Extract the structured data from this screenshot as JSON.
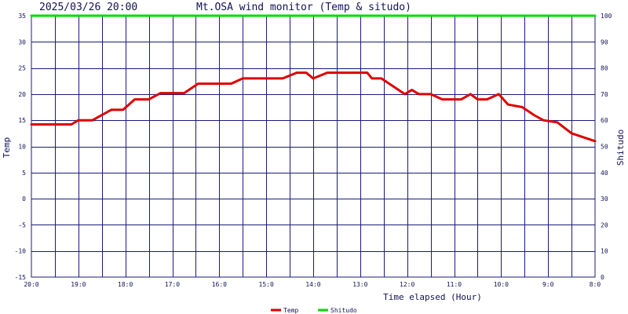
{
  "header": {
    "timestamp": "2025/03/26 20:00",
    "title": "Mt.OSA wind monitor (Temp & situdo)"
  },
  "chart_data": {
    "type": "line",
    "title": "Mt.OSA wind monitor (Temp & situdo)",
    "xlabel": "Time elapsed (Hour)",
    "ylabel": "Temp",
    "y2label": "Shitudo",
    "ylim": [
      -15,
      35
    ],
    "y2lim": [
      0,
      100
    ],
    "yticks": [
      "35",
      "30",
      "25",
      "20",
      "15",
      "10",
      "5",
      "0",
      "-5",
      "-10",
      "-15"
    ],
    "y2ticks": [
      "100",
      "90",
      "80",
      "70",
      "60",
      "50",
      "40",
      "30",
      "20",
      "10",
      "0"
    ],
    "xlim": [
      0,
      12
    ],
    "x_reversed_hours": true,
    "xticks": [
      "20:0",
      "19:0",
      "18:0",
      "17:0",
      "16:0",
      "15:0",
      "14:0",
      "13:0",
      "12:0",
      "11:0",
      "10:0",
      "9:0",
      "8:0"
    ],
    "grid": true,
    "legend_position": "bottom",
    "colors": {
      "grid": "#1a1a80",
      "temp": "#dd0000",
      "shitudo": "#00dd00",
      "text": "#111155"
    },
    "series": [
      {
        "name": "Temp",
        "color": "#dd0000",
        "axis": "left",
        "x": [
          0,
          0.5,
          0.85,
          1.0,
          1.3,
          1.7,
          1.95,
          2.2,
          2.5,
          2.75,
          3.0,
          3.25,
          3.55,
          3.75,
          4.0,
          4.25,
          4.5,
          4.75,
          5.0,
          5.15,
          5.35,
          5.65,
          5.85,
          6.0,
          6.3,
          6.5,
          6.8,
          7.15,
          7.25,
          7.45,
          7.7,
          7.95,
          8.1,
          8.25,
          8.5,
          8.75,
          8.95,
          9.15,
          9.35,
          9.5,
          9.7,
          9.95,
          10.15,
          10.45,
          10.7,
          10.9,
          11.2,
          11.5,
          12.0
        ],
        "values": [
          14.2,
          14.2,
          14.2,
          15,
          15,
          17,
          17,
          19,
          19,
          20.2,
          20.2,
          20.2,
          22,
          22,
          22,
          22,
          23,
          23,
          23,
          23,
          23,
          24.1,
          24.1,
          23,
          24.1,
          24.1,
          24.1,
          24.1,
          23,
          23,
          21.5,
          20,
          20.8,
          20,
          20,
          19,
          19,
          19,
          20,
          19,
          19,
          20,
          18,
          17.5,
          16,
          15,
          14.6,
          12.5,
          11
        ]
      },
      {
        "name": "Shitudo",
        "color": "#00dd00",
        "axis": "right",
        "x": [
          0,
          12
        ],
        "values": [
          100,
          100
        ]
      }
    ]
  }
}
